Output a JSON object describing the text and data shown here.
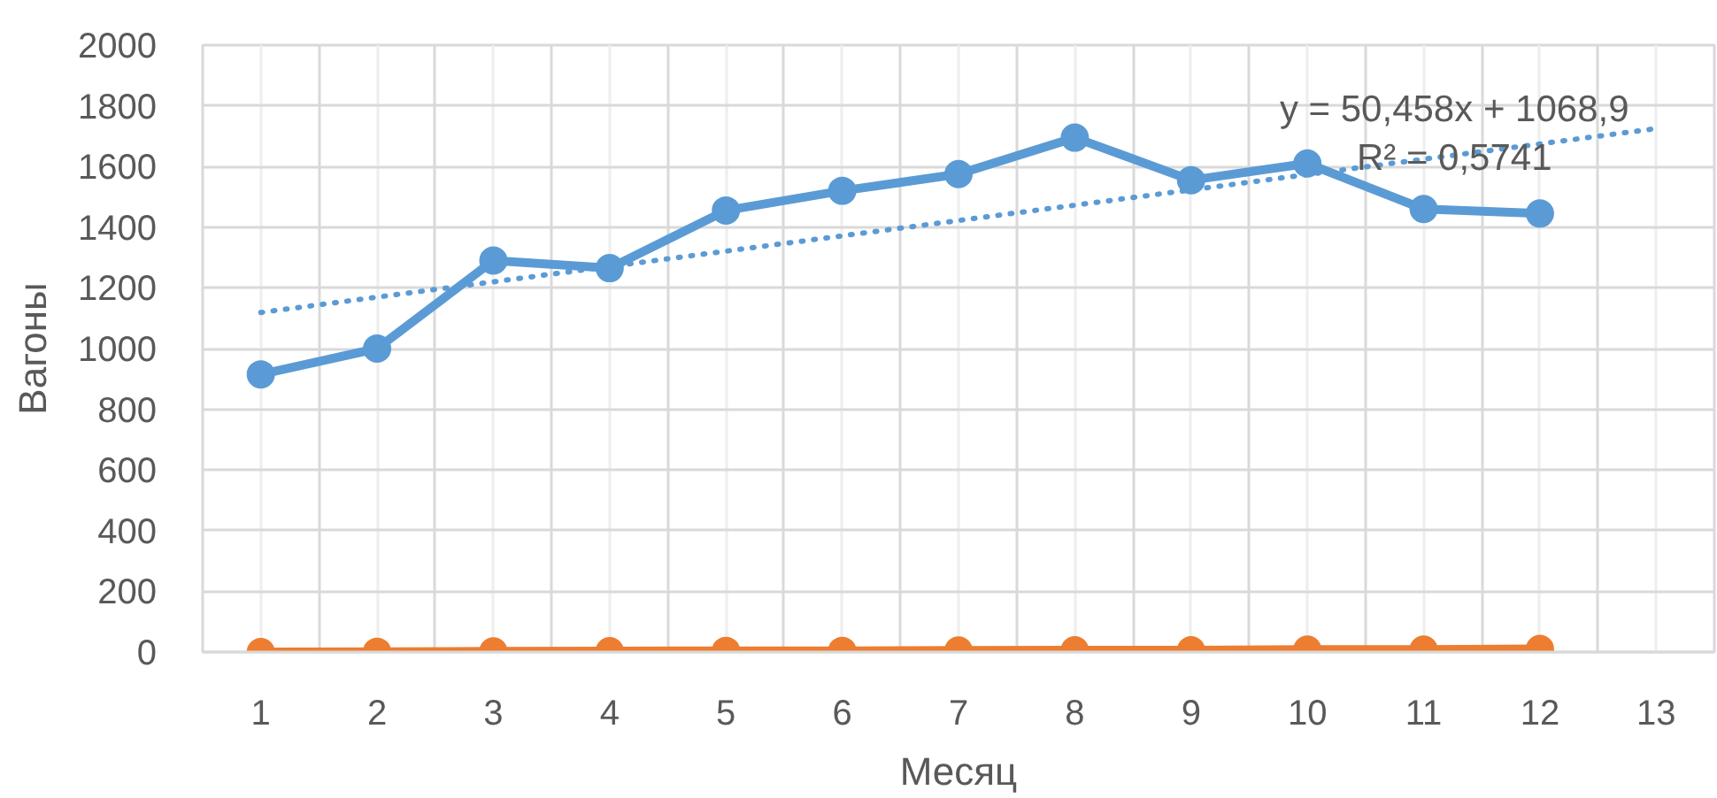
{
  "chart_data": {
    "type": "line",
    "xlabel": "Месяц",
    "ylabel": "Вагоны",
    "x": [
      1,
      2,
      3,
      4,
      5,
      6,
      7,
      8,
      9,
      10,
      11,
      12
    ],
    "xlim": [
      0.5,
      13.5
    ],
    "xticks": [
      1,
      2,
      3,
      4,
      5,
      6,
      7,
      8,
      9,
      10,
      11,
      12,
      13
    ],
    "ylim": [
      0,
      2000
    ],
    "yticks": [
      0,
      200,
      400,
      600,
      800,
      1000,
      1200,
      1400,
      1600,
      1800,
      2000
    ],
    "grid": true,
    "marker": "circle",
    "line_style": "solid",
    "series": [
      {
        "color": "#5b9bd5",
        "values": [
          915,
          1000,
          1290,
          1265,
          1455,
          1520,
          1575,
          1695,
          1555,
          1610,
          1460,
          1445
        ]
      },
      {
        "color": "#ed7d31",
        "values": [
          0,
          1,
          2,
          3,
          4,
          4,
          5,
          6,
          6,
          8,
          8,
          10
        ]
      },
      {
        "type": "line",
        "color": "#5b9bd5",
        "x": [
          1,
          13
        ],
        "values": [
          1119,
          1725
        ],
        "marker": "none",
        "line_style": "dotted"
      }
    ],
    "annotations": [
      "y = 50,458x + 1068,9",
      "R² = 0,5741"
    ]
  }
}
